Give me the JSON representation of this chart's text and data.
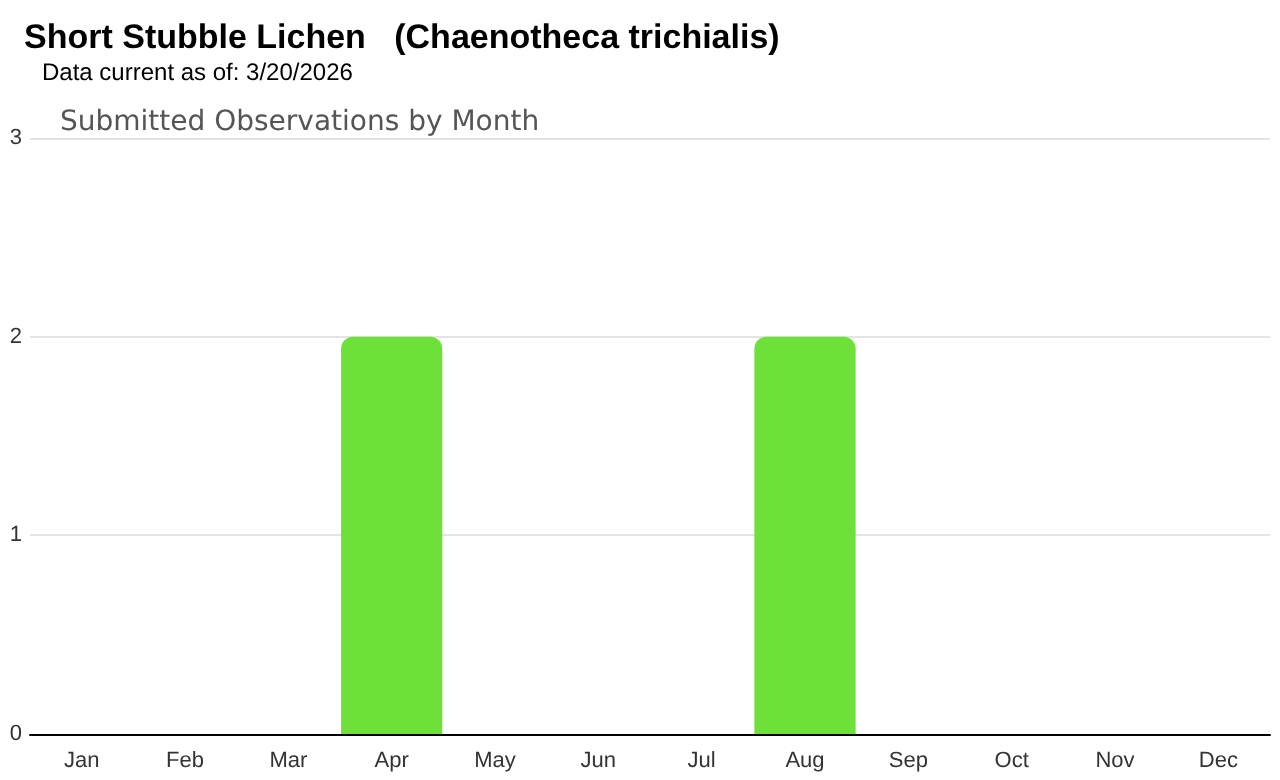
{
  "chart_data": {
    "type": "bar",
    "title": "Short Stubble Lichen   (Chaenotheca trichialis)",
    "subtitle": "Data current as of: 3/20/2026",
    "annotations": [
      "Submitted Observations by Month"
    ],
    "categories": [
      "Jan",
      "Feb",
      "Mar",
      "Apr",
      "May",
      "Jun",
      "Jul",
      "Aug",
      "Sep",
      "Oct",
      "Nov",
      "Dec"
    ],
    "values": [
      0,
      0,
      0,
      2,
      0,
      0,
      0,
      2,
      0,
      0,
      0,
      0
    ],
    "color": "#6ee03a",
    "ylim": [
      0,
      3
    ],
    "yticks": [
      0,
      1,
      2,
      3
    ],
    "grid": "y"
  }
}
